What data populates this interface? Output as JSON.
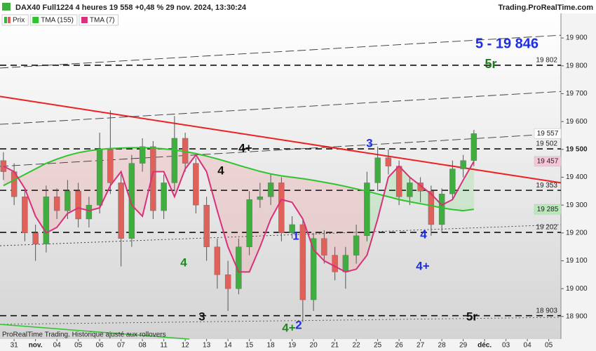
{
  "chart_data": {
    "type": "candlestick",
    "title": "DAX40 Full1224 4 heures 19 558 +0,48 % 29 nov. 2024, 13:30:24",
    "source": "Trading.ProRealTime.com",
    "footer": "ProRealTime Trading. Historique ajusté aux rollovers",
    "xlim": [
      -0.66,
      25.57
    ],
    "ylim": [
      18819,
      19991
    ],
    "xticks": [
      {
        "value": 0,
        "label": "31"
      },
      {
        "value": 1,
        "label": "nov."
      },
      {
        "value": 2,
        "label": "04"
      },
      {
        "value": 3,
        "label": "05"
      },
      {
        "value": 4,
        "label": "06"
      },
      {
        "value": 5,
        "label": "07"
      },
      {
        "value": 6,
        "label": "08"
      },
      {
        "value": 7,
        "label": "11"
      },
      {
        "value": 8,
        "label": "12"
      },
      {
        "value": 9,
        "label": "13"
      },
      {
        "value": 10,
        "label": "14"
      },
      {
        "value": 11,
        "label": "15"
      },
      {
        "value": 12,
        "label": "18"
      },
      {
        "value": 13,
        "label": "19"
      },
      {
        "value": 14,
        "label": "20"
      },
      {
        "value": 15,
        "label": "21"
      },
      {
        "value": 16,
        "label": "22"
      },
      {
        "value": 17,
        "label": "25"
      },
      {
        "value": 18,
        "label": "26"
      },
      {
        "value": 19,
        "label": "27"
      },
      {
        "value": 20,
        "label": "28"
      },
      {
        "value": 21,
        "label": "29"
      },
      {
        "value": 22,
        "label": "déc."
      },
      {
        "value": 23,
        "label": "03"
      },
      {
        "value": 24,
        "label": "04"
      },
      {
        "value": 25,
        "label": "05"
      }
    ],
    "yticks": [
      {
        "value": 18900,
        "label": "18 900"
      },
      {
        "value": 19000,
        "label": "19 000"
      },
      {
        "value": 19100,
        "label": "19 100"
      },
      {
        "value": 19200,
        "label": "19 200"
      },
      {
        "value": 19300,
        "label": "19 300"
      },
      {
        "value": 19400,
        "label": "19 400"
      },
      {
        "value": 19500,
        "label": "19 500"
      },
      {
        "value": 19600,
        "label": "19 600"
      },
      {
        "value": 19700,
        "label": "19 700"
      },
      {
        "value": 19800,
        "label": "19 800"
      },
      {
        "value": 19900,
        "label": "19 900"
      }
    ],
    "x": [
      -0.5,
      0,
      0.5,
      1,
      1.5,
      2,
      2.5,
      3,
      3.5,
      4,
      4.5,
      5,
      5.5,
      6,
      6.5,
      7,
      7.5,
      8,
      8.5,
      9,
      9.5,
      10,
      10.5,
      11,
      11.5,
      12,
      12.5,
      13,
      13.5,
      14,
      14.5,
      15,
      15.5,
      16,
      16.5,
      17,
      17.5,
      18,
      18.5,
      19,
      19.5,
      20,
      20.5,
      21,
      21.5
    ],
    "series": [
      {
        "name": "Prix",
        "type": "candlestick",
        "up_color": "#3fae3f",
        "down_color": "#e0605a",
        "open": [
          19460,
          19420,
          19330,
          19200,
          19160,
          19330,
          19280,
          19350,
          19250,
          19300,
          19500,
          19380,
          19180,
          19450,
          19510,
          19280,
          19380,
          19540,
          19450,
          19300,
          19150,
          19050,
          19000,
          19150,
          19320,
          19330,
          19380,
          19200,
          19230,
          18960,
          19180,
          19120,
          19060,
          19120,
          19190,
          19380,
          19470,
          19440,
          19330,
          19380,
          19350,
          19230,
          19340,
          19430,
          19460
        ],
        "high": [
          19490,
          19450,
          19360,
          19230,
          19370,
          19360,
          19390,
          19380,
          19330,
          19560,
          19640,
          19410,
          19480,
          19540,
          19530,
          19410,
          19620,
          19560,
          19470,
          19330,
          19180,
          19100,
          19180,
          19350,
          19380,
          19410,
          19400,
          19260,
          19250,
          19200,
          19210,
          19150,
          19150,
          19230,
          19420,
          19510,
          19500,
          19460,
          19400,
          19400,
          19370,
          19360,
          19460,
          19480,
          19570
        ],
        "low": [
          19390,
          19300,
          19170,
          19100,
          19130,
          19250,
          19250,
          19220,
          19220,
          19270,
          19340,
          19080,
          19150,
          19420,
          19250,
          19250,
          19350,
          19420,
          19270,
          19100,
          19000,
          18920,
          18980,
          19120,
          19290,
          19300,
          19170,
          19180,
          18880,
          18920,
          19090,
          19030,
          19000,
          19090,
          19170,
          19350,
          19410,
          19300,
          19300,
          19310,
          19190,
          19200,
          19320,
          19400,
          19440
        ],
        "close": [
          19420,
          19330,
          19200,
          19160,
          19330,
          19280,
          19350,
          19250,
          19300,
          19500,
          19380,
          19180,
          19450,
          19510,
          19280,
          19380,
          19540,
          19450,
          19300,
          19150,
          19050,
          19000,
          19150,
          19320,
          19330,
          19380,
          19200,
          19230,
          18960,
          19180,
          19120,
          19060,
          19120,
          19190,
          19380,
          19470,
          19440,
          19330,
          19380,
          19350,
          19230,
          19340,
          19430,
          19460,
          19557
        ],
        "last_label": "19 557",
        "label_color": "#ffffff"
      },
      {
        "name": "TMA (155)",
        "type": "line",
        "color": "#2ec42e",
        "values": [
          19370,
          19390,
          19410,
          19430,
          19450,
          19465,
          19478,
          19488,
          19495,
          19500,
          19503,
          19505,
          19506,
          19506,
          19505,
          19502,
          19498,
          19492,
          19485,
          19476,
          19466,
          19455,
          19443,
          19432,
          19421,
          19412,
          19405,
          19400,
          19395,
          19389,
          19382,
          19375,
          19367,
          19358,
          19350,
          19340,
          19330,
          19320,
          19312,
          19305,
          19298,
          19290,
          19284,
          19280,
          19285
        ],
        "last_label": "19 285",
        "label_color": "#b9e8b9"
      },
      {
        "name": "TMA (7)",
        "type": "line",
        "color": "#d8307a",
        "values": [
          19440,
          19420,
          19360,
          19260,
          19200,
          19220,
          19270,
          19290,
          19280,
          19290,
          19370,
          19420,
          19300,
          19260,
          19420,
          19420,
          19330,
          19430,
          19480,
          19420,
          19280,
          19150,
          19060,
          19060,
          19150,
          19250,
          19320,
          19310,
          19250,
          19140,
          19100,
          19080,
          19060,
          19070,
          19120,
          19250,
          19400,
          19440,
          19400,
          19370,
          19340,
          19300,
          19320,
          19390,
          19457
        ],
        "last_label": "19 457",
        "label_color": "#f6c6d8"
      }
    ],
    "levels": [
      {
        "value": 19802,
        "label": "19 802"
      },
      {
        "value": 19502,
        "label": "19 502"
      },
      {
        "value": 19353,
        "label": "19 353"
      },
      {
        "value": 19202,
        "label": "19 202"
      },
      {
        "value": 18903,
        "label": "18 903"
      }
    ],
    "trend_lines": [
      {
        "style": "solid",
        "color": "#ee2020",
        "values": [
          19690,
          19380
        ]
      },
      {
        "style": "dashed",
        "color": "#333333",
        "values": [
          19792,
          19910
        ]
      },
      {
        "style": "dashed",
        "color": "#333333",
        "values": [
          19590,
          19708
        ]
      },
      {
        "style": "dashed",
        "color": "#333333",
        "values": [
          19439,
          19557
        ]
      },
      {
        "style": "dotted",
        "color": "#333333",
        "values": [
          19154,
          19230
        ]
      },
      {
        "style": "dotted",
        "color": "#555555",
        "values": [
          18872,
          18897
        ]
      }
    ],
    "annotations": [
      {
        "text": "5 - 19 846",
        "color": "#1d2fe0"
      },
      {
        "text": "5r",
        "color": "#1f7a1f"
      },
      {
        "text": "3",
        "color": "#1d2fe0"
      },
      {
        "text": "4+",
        "color": "#111111"
      },
      {
        "text": "4",
        "color": "#111111"
      },
      {
        "text": "4",
        "color": "#1f8a1f"
      },
      {
        "text": "3",
        "color": "#111111"
      },
      {
        "text": "1",
        "color": "#1d2fe0"
      },
      {
        "text": "4",
        "color": "#1d2fe0"
      },
      {
        "text": "4+",
        "color": "#1d2fe0"
      },
      {
        "text": "4+",
        "color": "#1f8a1f"
      },
      {
        "text": "2",
        "color": "#1d2fe0"
      },
      {
        "text": "5r",
        "color": "#111111"
      }
    ]
  }
}
